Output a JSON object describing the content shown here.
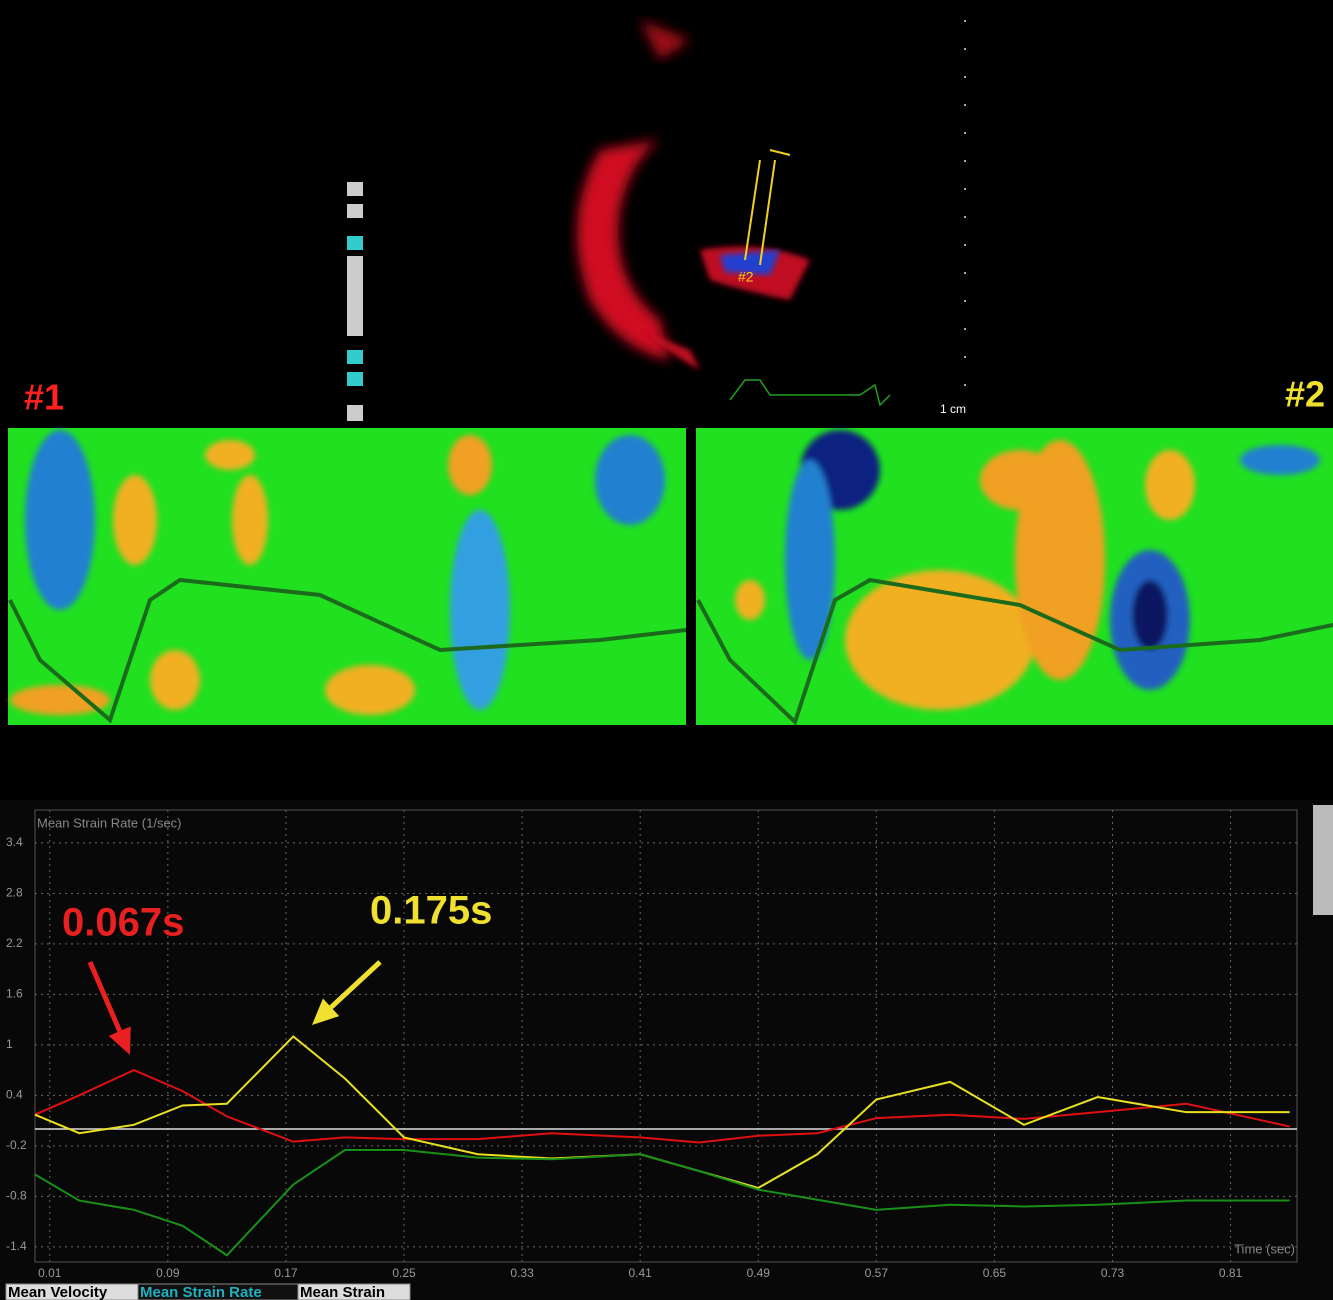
{
  "image_labels": {
    "segment_1": "#1",
    "segment_2": "#2",
    "scale": "1 cm"
  },
  "tabs": [
    "Mean Velocity",
    "Mean Strain Rate",
    "Mean Strain"
  ],
  "chart_data": {
    "type": "line",
    "title": "Mean Strain Rate (1/sec)",
    "x_label": "Time (sec)",
    "x": [
      0,
      0.03,
      0.067,
      0.1,
      0.13,
      0.175,
      0.21,
      0.25,
      0.3,
      0.35,
      0.41,
      0.45,
      0.49,
      0.53,
      0.57,
      0.62,
      0.67,
      0.72,
      0.78,
      0.85
    ],
    "series": [
      {
        "color": "#e01010",
        "values": [
          0.17,
          0.4,
          0.7,
          0.45,
          0.15,
          -0.15,
          -0.1,
          -0.12,
          -0.12,
          -0.05,
          -0.1,
          -0.16,
          -0.08,
          -0.05,
          0.13,
          0.17,
          0.12,
          0.2,
          0.3,
          0.03
        ]
      },
      {
        "color": "#e8e020",
        "values": [
          0.17,
          -0.05,
          0.05,
          0.28,
          0.3,
          1.1,
          0.6,
          -0.1,
          -0.3,
          -0.35,
          -0.3,
          -0.5,
          -0.7,
          -0.3,
          0.35,
          0.56,
          0.05,
          0.38,
          0.2,
          0.2
        ]
      },
      {
        "color": "#189018",
        "values": [
          -0.54,
          -0.85,
          -0.96,
          -1.15,
          -1.5,
          -0.66,
          -0.25,
          -0.25,
          -0.34,
          -0.36,
          -0.3,
          -0.5,
          -0.72,
          -0.84,
          -0.96,
          -0.9,
          -0.92,
          -0.9,
          -0.85,
          -0.85
        ]
      }
    ],
    "xlim": [
      0,
      0.855
    ],
    "xticks": [
      0.01,
      0.09,
      0.17,
      0.25,
      0.33,
      0.41,
      0.49,
      0.57,
      0.65,
      0.73,
      0.81
    ],
    "ylim": [
      -1.58,
      3.79
    ],
    "yticks": [
      3.4,
      2.8,
      2.2,
      1.6,
      1.0,
      0.4,
      -0.2,
      -0.8,
      -1.4
    ],
    "grid": true,
    "annotations": [
      {
        "text": "0.067s",
        "color": "#e82020"
      },
      {
        "text": "0.175s",
        "color": "#f0e030"
      }
    ]
  }
}
